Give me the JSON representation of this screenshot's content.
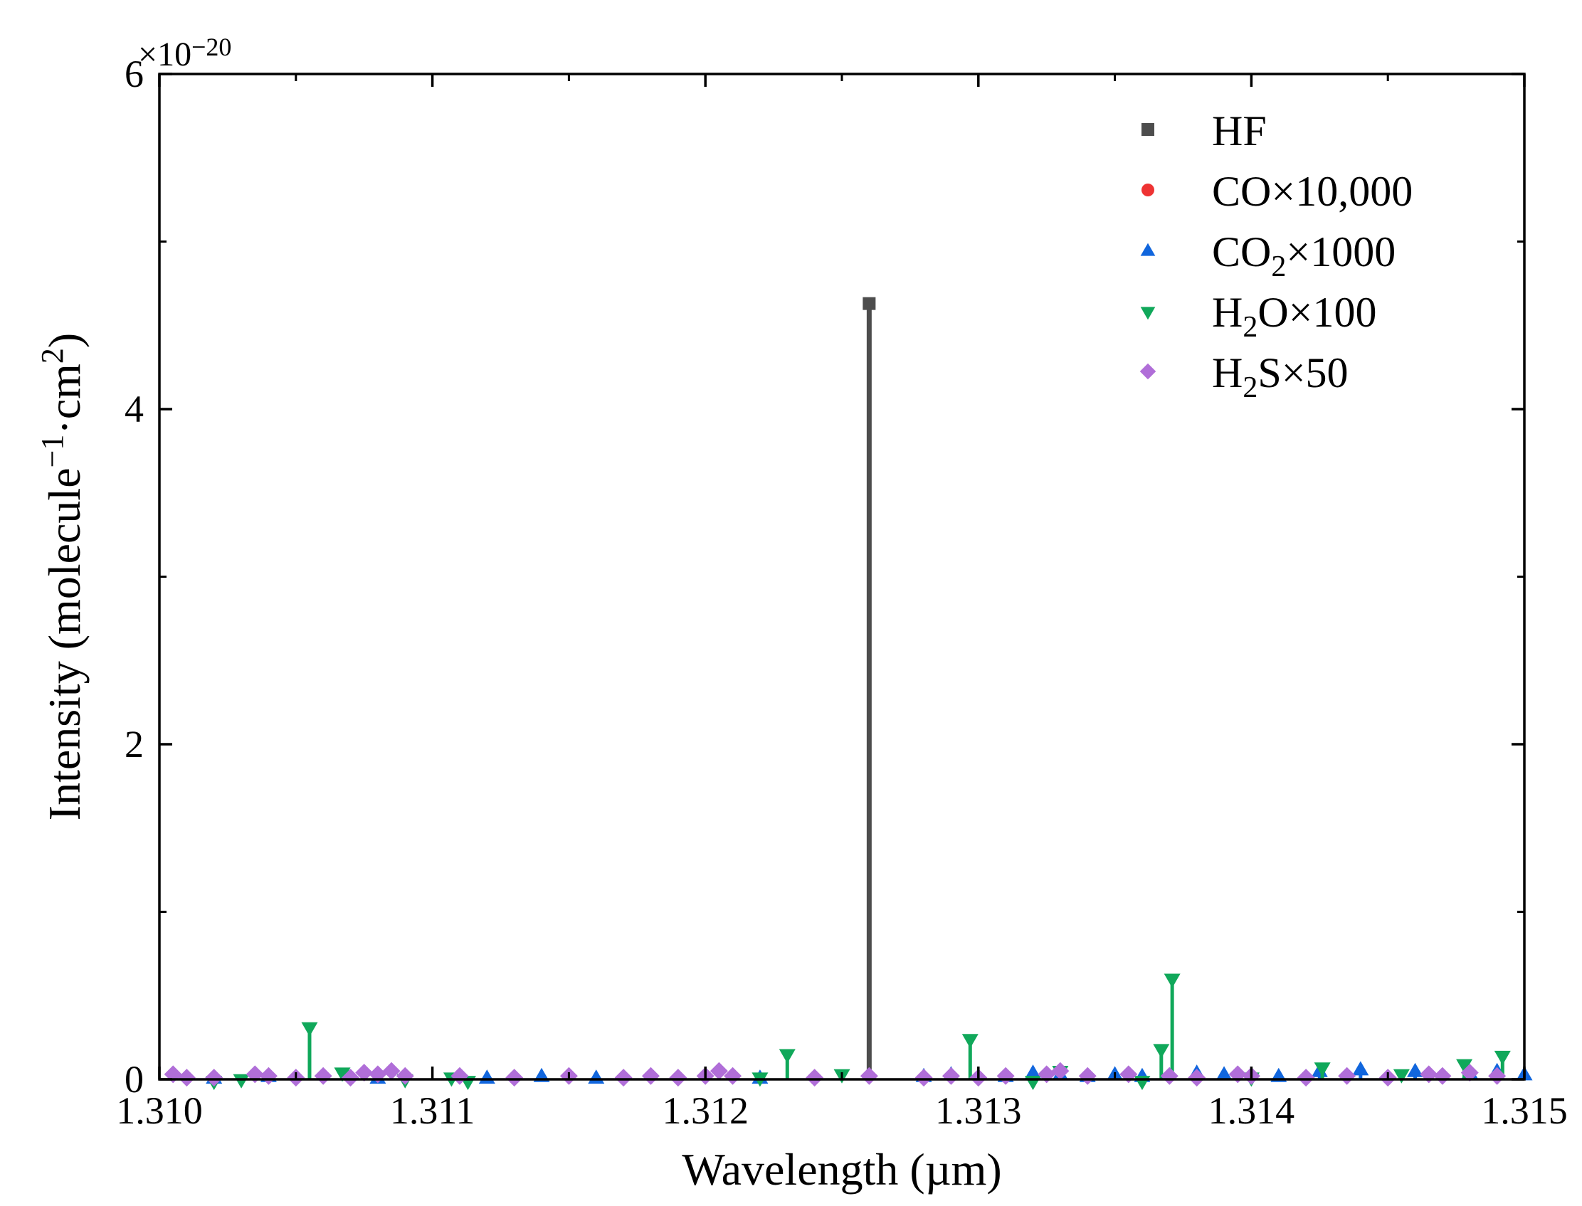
{
  "chart_data": {
    "type": "scatter",
    "title": "",
    "xlabel": "Wavelength (µm)",
    "ylabel": {
      "prefix": "Intensity (molecule",
      "sup1": "−1",
      "middle": "·cm",
      "sup2": "2",
      "suffix": ")"
    },
    "y_multiplier": {
      "base": "×10",
      "exponent": "−20"
    },
    "xlim": [
      1.31,
      1.315
    ],
    "ylim": [
      0,
      6
    ],
    "x_ticks": [
      "1.310",
      "1.311",
      "1.312",
      "1.313",
      "1.314",
      "1.315"
    ],
    "y_ticks": [
      "0",
      "2",
      "4",
      "6"
    ],
    "grid": false,
    "legend_position": "top-right",
    "drop_lines": true,
    "series": [
      {
        "key": "HF",
        "legend": [
          {
            "t": "H"
          },
          {
            "t": "F"
          }
        ],
        "color": "#4d4d4d",
        "marker": "square",
        "points": [
          [
            1.3126,
            4.63
          ]
        ]
      },
      {
        "key": "CO",
        "legend": [
          {
            "t": "CO×10,000"
          }
        ],
        "color": "#ee3333",
        "marker": "circle",
        "points": []
      },
      {
        "key": "CO2",
        "legend": [
          {
            "t": "CO"
          },
          {
            "t": "2",
            "sub": true
          },
          {
            "t": "×1000"
          }
        ],
        "color": "#1166dd",
        "marker": "triangle-up",
        "points": [
          [
            1.3102,
            0.01
          ],
          [
            1.3104,
            0.02
          ],
          [
            1.3108,
            0.01
          ],
          [
            1.3112,
            0.01
          ],
          [
            1.3114,
            0.02
          ],
          [
            1.3116,
            0.01
          ],
          [
            1.3122,
            0.01
          ],
          [
            1.3128,
            0.02
          ],
          [
            1.3129,
            0.03
          ],
          [
            1.3131,
            0.02
          ],
          [
            1.3132,
            0.04
          ],
          [
            1.3133,
            0.03
          ],
          [
            1.3134,
            0.02
          ],
          [
            1.3135,
            0.03
          ],
          [
            1.3136,
            0.02
          ],
          [
            1.3138,
            0.04
          ],
          [
            1.3139,
            0.03
          ],
          [
            1.3141,
            0.02
          ],
          [
            1.31425,
            0.05
          ],
          [
            1.3144,
            0.06
          ],
          [
            1.3146,
            0.05
          ],
          [
            1.3148,
            0.04
          ],
          [
            1.3149,
            0.05
          ],
          [
            1.315,
            0.03
          ]
        ]
      },
      {
        "key": "H2O",
        "legend": [
          {
            "t": "H"
          },
          {
            "t": "2",
            "sub": true
          },
          {
            "t": "O×100"
          }
        ],
        "color": "#10a85a",
        "marker": "triangle-down",
        "points": [
          [
            1.3102,
            0.01
          ],
          [
            1.3103,
            0.02
          ],
          [
            1.31055,
            0.33
          ],
          [
            1.31067,
            0.06
          ],
          [
            1.3109,
            0.02
          ],
          [
            1.31107,
            0.03
          ],
          [
            1.31113,
            0.01
          ],
          [
            1.3122,
            0.03
          ],
          [
            1.3123,
            0.17
          ],
          [
            1.3125,
            0.05
          ],
          [
            1.31297,
            0.26
          ],
          [
            1.3132,
            0.01
          ],
          [
            1.3133,
            0.07
          ],
          [
            1.3136,
            0.01
          ],
          [
            1.31367,
            0.2
          ],
          [
            1.31371,
            0.62
          ],
          [
            1.314,
            0.03
          ],
          [
            1.31426,
            0.09
          ],
          [
            1.31455,
            0.05
          ],
          [
            1.31478,
            0.11
          ],
          [
            1.31492,
            0.16
          ]
        ]
      },
      {
        "key": "H2S",
        "legend": [
          {
            "t": "H"
          },
          {
            "t": "2",
            "sub": true
          },
          {
            "t": "S×50"
          }
        ],
        "color": "#b06ed8",
        "marker": "diamond",
        "points": [
          [
            1.31005,
            0.03
          ],
          [
            1.3101,
            0.01
          ],
          [
            1.3102,
            0.01
          ],
          [
            1.31035,
            0.03
          ],
          [
            1.3104,
            0.02
          ],
          [
            1.3105,
            0.01
          ],
          [
            1.3106,
            0.02
          ],
          [
            1.3107,
            0.01
          ],
          [
            1.31075,
            0.04
          ],
          [
            1.3108,
            0.03
          ],
          [
            1.31085,
            0.05
          ],
          [
            1.3109,
            0.02
          ],
          [
            1.3111,
            0.02
          ],
          [
            1.3113,
            0.01
          ],
          [
            1.3115,
            0.02
          ],
          [
            1.3117,
            0.01
          ],
          [
            1.3118,
            0.02
          ],
          [
            1.3119,
            0.01
          ],
          [
            1.312,
            0.02
          ],
          [
            1.31205,
            0.05
          ],
          [
            1.3121,
            0.02
          ],
          [
            1.3124,
            0.01
          ],
          [
            1.3126,
            0.02
          ],
          [
            1.3128,
            0.01
          ],
          [
            1.3129,
            0.02
          ],
          [
            1.313,
            0.01
          ],
          [
            1.3131,
            0.02
          ],
          [
            1.31325,
            0.03
          ],
          [
            1.3133,
            0.05
          ],
          [
            1.3134,
            0.02
          ],
          [
            1.31355,
            0.03
          ],
          [
            1.3137,
            0.02
          ],
          [
            1.3138,
            0.01
          ],
          [
            1.31395,
            0.03
          ],
          [
            1.314,
            0.02
          ],
          [
            1.3142,
            0.01
          ],
          [
            1.31435,
            0.02
          ],
          [
            1.3145,
            0.01
          ],
          [
            1.31465,
            0.03
          ],
          [
            1.3147,
            0.02
          ],
          [
            1.3148,
            0.04
          ],
          [
            1.3149,
            0.02
          ]
        ]
      }
    ]
  }
}
